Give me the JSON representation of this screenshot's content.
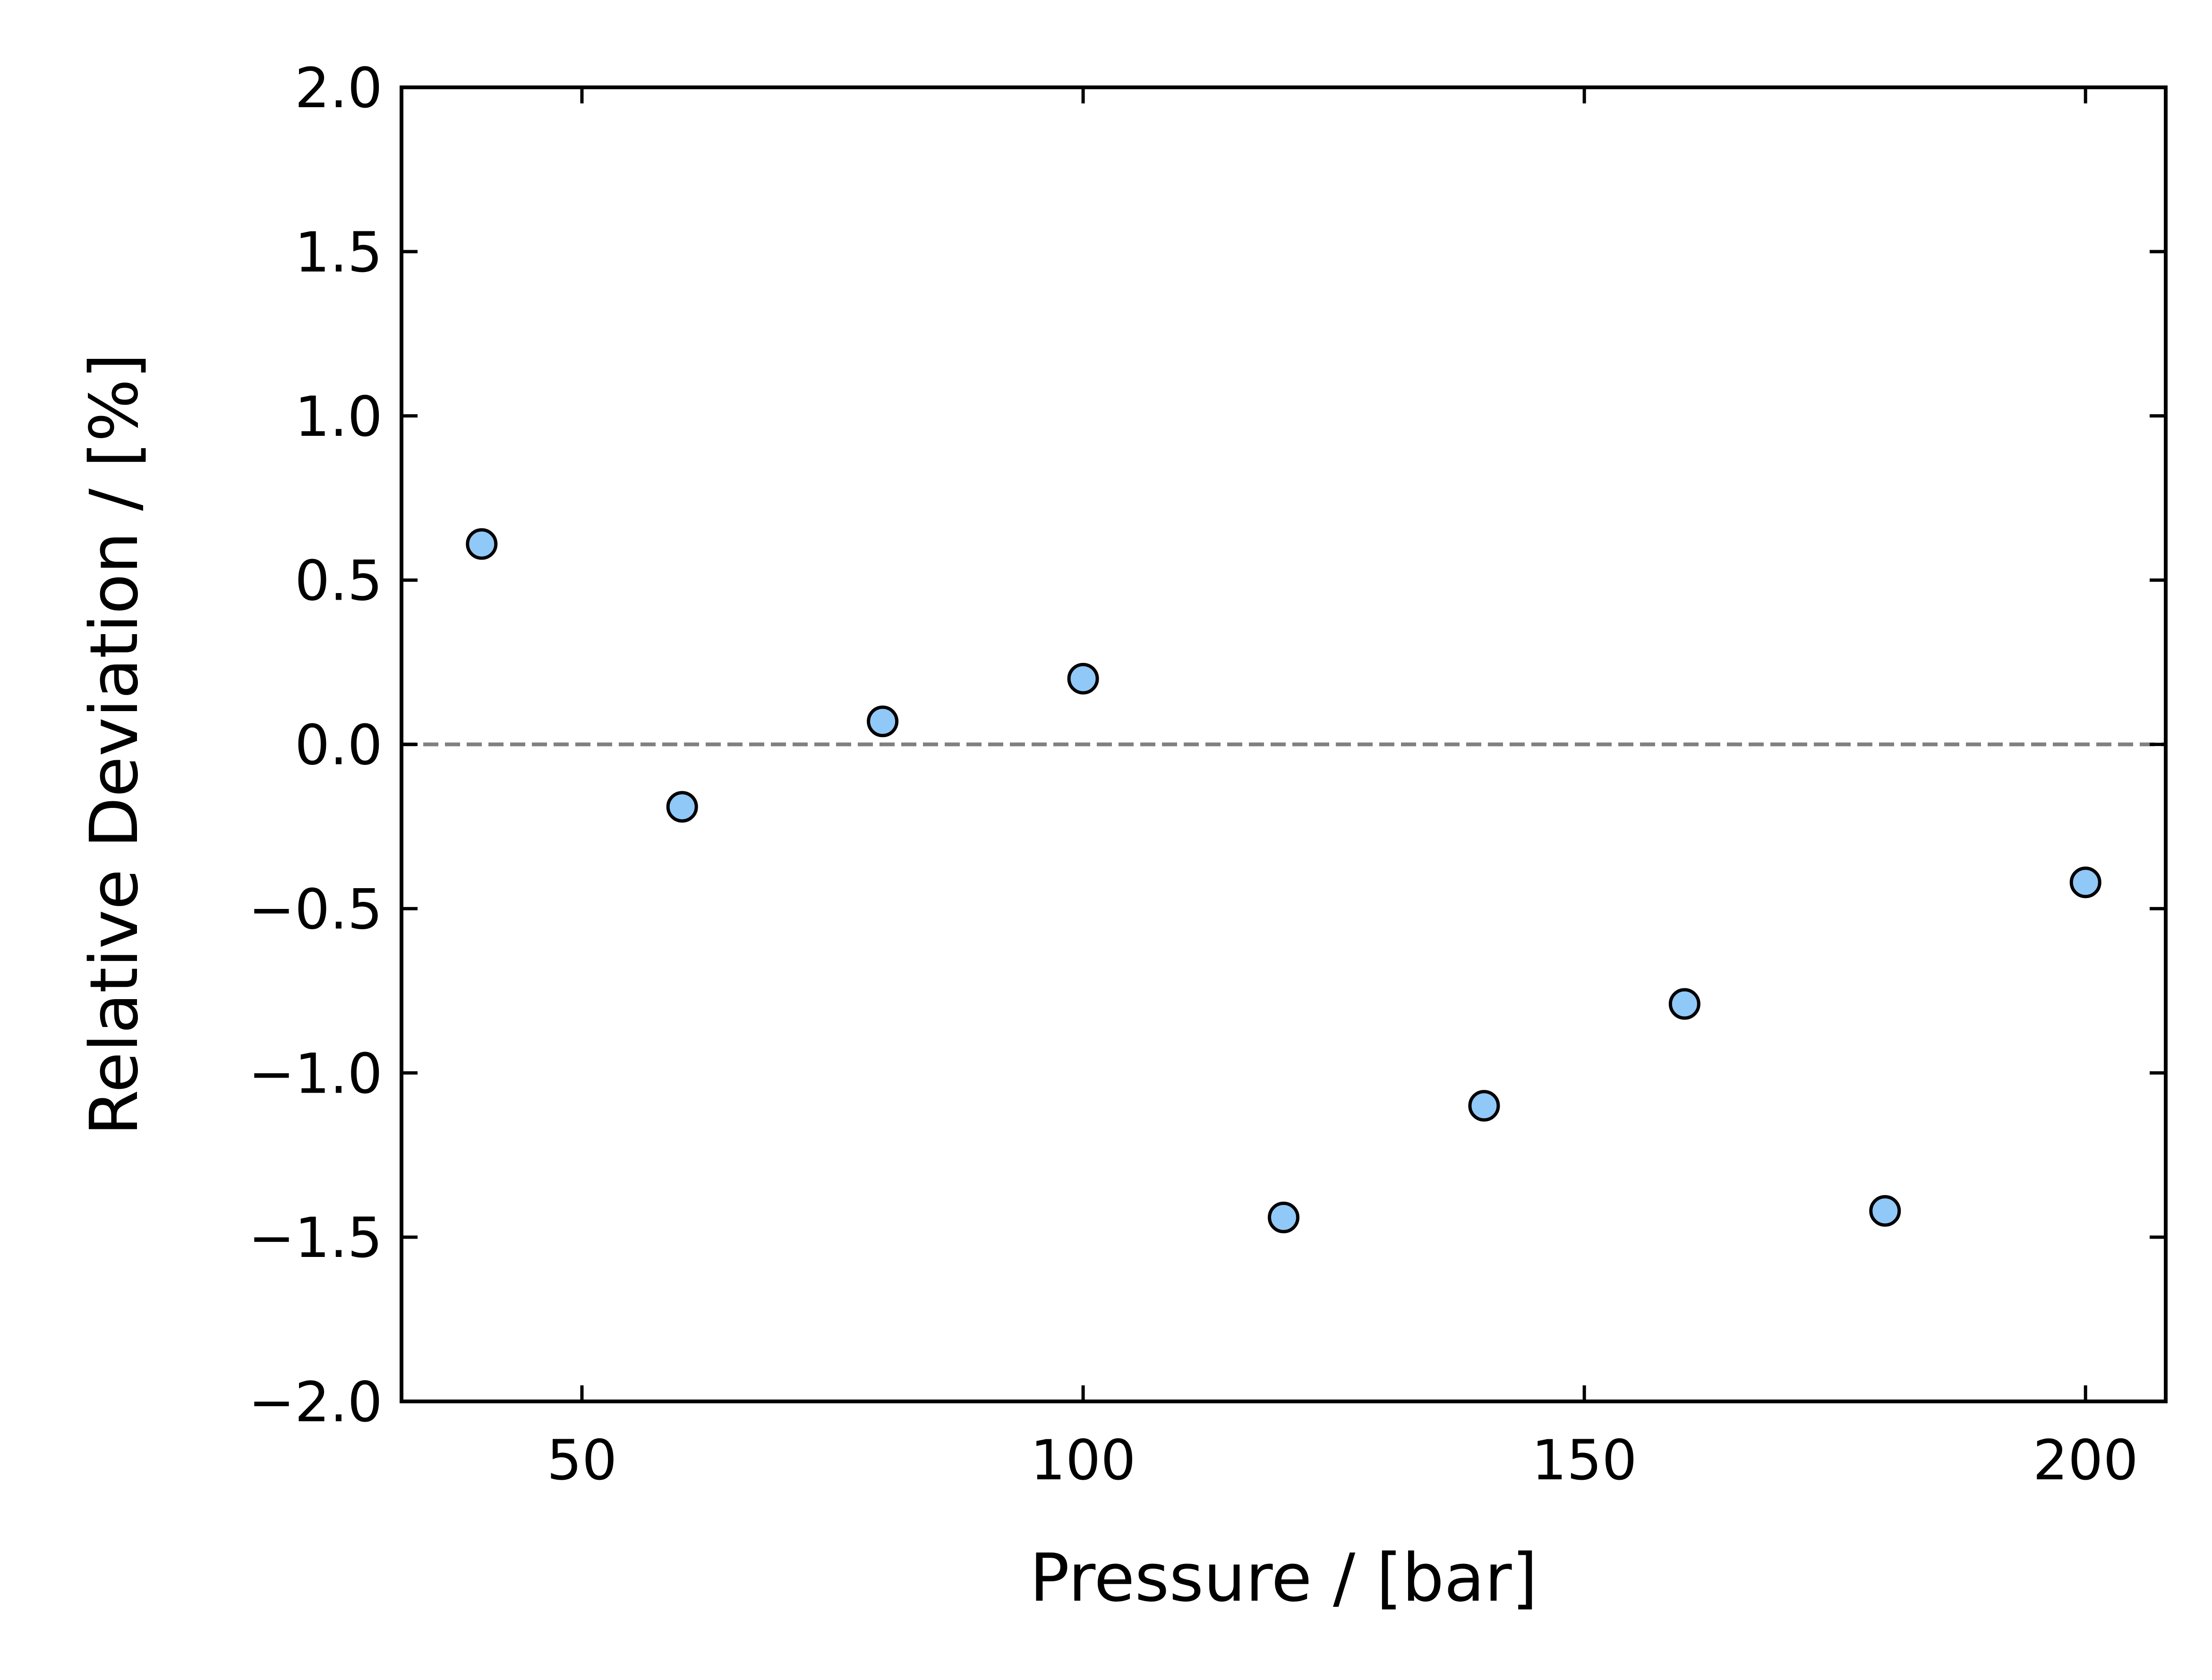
{
  "chart_data": {
    "type": "scatter",
    "title": "",
    "xlabel": "Pressure / [bar]",
    "ylabel": "Relative Deviation / [%]",
    "xlim": [
      32,
      208
    ],
    "ylim": [
      -2.0,
      2.0
    ],
    "x_ticks": [
      50,
      100,
      150,
      200
    ],
    "x_tick_labels": [
      "50",
      "100",
      "150",
      "200"
    ],
    "y_ticks": [
      2.0,
      1.5,
      1.0,
      0.5,
      0.0,
      -0.5,
      -1.0,
      -1.5,
      -2.0
    ],
    "y_tick_labels": [
      "2.0",
      "1.5",
      "1.0",
      "0.5",
      "0.0",
      "−0.5",
      "−1.0",
      "−1.5",
      "−2.0"
    ],
    "grid": false,
    "reference_line": {
      "y": 0.0,
      "style": "dashed",
      "color": "#808080"
    },
    "series": [
      {
        "marker_fill": "#90c8f8",
        "marker_edge": "#000000",
        "points": [
          {
            "x": 40,
            "y": 0.61
          },
          {
            "x": 60,
            "y": -0.19
          },
          {
            "x": 80,
            "y": 0.07
          },
          {
            "x": 100,
            "y": 0.2
          },
          {
            "x": 120,
            "y": -1.44
          },
          {
            "x": 140,
            "y": -1.1
          },
          {
            "x": 160,
            "y": -0.79
          },
          {
            "x": 180,
            "y": -1.42
          },
          {
            "x": 200,
            "y": -0.42
          }
        ]
      }
    ]
  }
}
